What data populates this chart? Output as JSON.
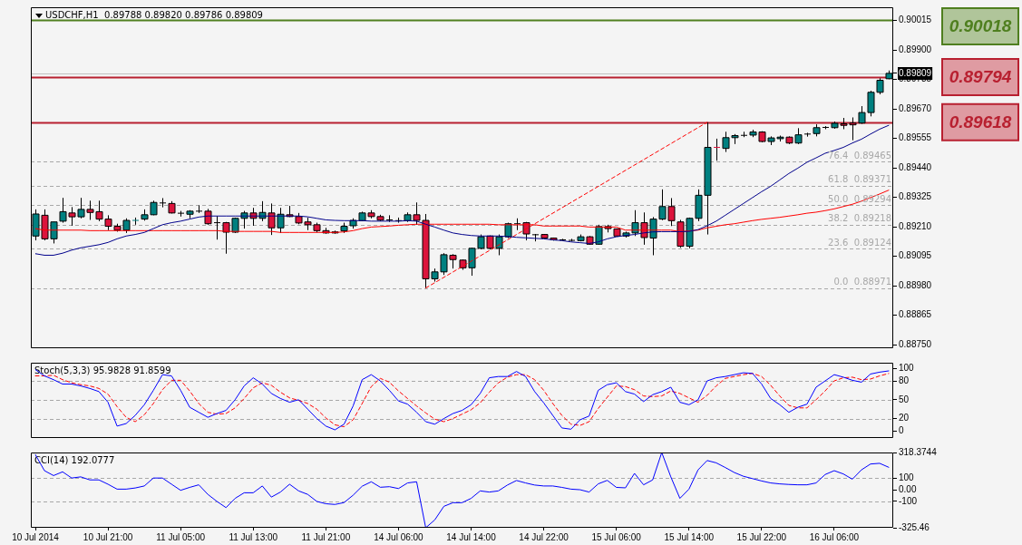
{
  "chart_data": [
    {
      "type": "candlestick",
      "title": "USDCHF,H1  0.89788 0.89820 0.89786 0.89809",
      "categories": [
        null,
        null,
        null,
        null,
        null,
        null,
        null,
        null,
        null,
        null,
        null,
        null,
        null,
        null,
        null,
        null,
        null,
        null,
        null,
        null,
        null,
        null,
        null,
        null,
        null,
        null,
        null,
        null,
        null,
        null,
        null,
        null,
        null,
        null,
        null,
        null,
        null,
        null,
        null,
        null,
        null,
        null,
        null,
        null,
        null,
        null,
        null,
        null,
        null,
        null,
        null,
        null,
        null,
        null,
        null,
        null,
        null,
        null,
        null,
        null,
        null,
        null,
        null,
        null,
        null,
        null,
        null,
        null,
        null,
        null,
        null,
        null,
        null,
        null,
        null,
        null,
        null,
        null,
        null,
        null,
        null,
        null,
        null,
        null,
        null,
        null,
        null,
        null,
        null,
        null,
        null,
        null,
        null,
        null,
        null
      ],
      "ohlc": [
        [
          0.89174,
          0.89278,
          0.89157,
          0.8926
        ],
        [
          0.89255,
          0.89278,
          0.89157,
          0.89163
        ],
        [
          0.89163,
          0.89229,
          0.89145,
          0.89229
        ],
        [
          0.89232,
          0.89323,
          0.89226,
          0.89269
        ],
        [
          0.89264,
          0.89287,
          0.89214,
          0.89249
        ],
        [
          0.89249,
          0.89323,
          0.89243,
          0.89278
        ],
        [
          0.89278,
          0.89312,
          0.89237,
          0.89266
        ],
        [
          0.89269,
          0.89312,
          0.89232,
          0.8924
        ],
        [
          0.8924,
          0.89255,
          0.89197,
          0.89212
        ],
        [
          0.89212,
          0.89222,
          0.89191,
          0.89197
        ],
        [
          0.89197,
          0.89243,
          0.89186,
          0.89235
        ],
        [
          0.89235,
          0.89246,
          0.89218,
          0.89237
        ],
        [
          0.8924,
          0.89278,
          0.89234,
          0.89257
        ],
        [
          0.89257,
          0.89312,
          0.89255,
          0.89305
        ],
        [
          0.89303,
          0.89322,
          0.89286,
          0.89303
        ],
        [
          0.89301,
          0.8931,
          0.89262,
          0.89264
        ],
        [
          0.89263,
          0.89272,
          0.8925,
          0.89263
        ],
        [
          0.89259,
          0.89275,
          0.89243,
          0.89271
        ],
        [
          0.89271,
          0.89294,
          0.89264,
          0.89271
        ],
        [
          0.89271,
          0.8928,
          0.89218,
          0.89222
        ],
        [
          0.89226,
          0.89252,
          0.8916,
          0.89226
        ],
        [
          0.89226,
          0.89229,
          0.89105,
          0.89189
        ],
        [
          0.89189,
          0.89246,
          0.89186,
          0.89243
        ],
        [
          0.89243,
          0.89272,
          0.89203,
          0.89264
        ],
        [
          0.89264,
          0.89284,
          0.89214,
          0.89243
        ],
        [
          0.89243,
          0.8931,
          0.89232,
          0.89266
        ],
        [
          0.89264,
          0.89301,
          0.89178,
          0.89206
        ],
        [
          0.89206,
          0.89284,
          0.89186,
          0.89259
        ],
        [
          0.89257,
          0.89292,
          0.89248,
          0.8925
        ],
        [
          0.8925,
          0.89264,
          0.8922,
          0.89225
        ],
        [
          0.89229,
          0.89246,
          0.89197,
          0.89218
        ],
        [
          0.89218,
          0.89226,
          0.89188,
          0.89195
        ],
        [
          0.89195,
          0.89206,
          0.89183,
          0.89186
        ],
        [
          0.8919,
          0.89195,
          0.89183,
          0.89186
        ],
        [
          0.89194,
          0.89226,
          0.89186,
          0.89212
        ],
        [
          0.89214,
          0.89243,
          0.89203,
          0.89235
        ],
        [
          0.89234,
          0.89269,
          0.89232,
          0.89264
        ],
        [
          0.89264,
          0.89275,
          0.89243,
          0.8925
        ],
        [
          0.8925,
          0.89257,
          0.89232,
          0.89236
        ],
        [
          0.89237,
          0.89255,
          0.89229,
          0.89237
        ],
        [
          0.89234,
          0.89246,
          0.89226,
          0.89234
        ],
        [
          0.89234,
          0.89266,
          0.89229,
          0.89257
        ],
        [
          0.89257,
          0.89305,
          0.89218,
          0.89235
        ],
        [
          0.89235,
          0.8926,
          0.88971,
          0.89007
        ],
        [
          0.89007,
          0.89047,
          0.88996,
          0.89034
        ],
        [
          0.89034,
          0.89107,
          0.89022,
          0.89101
        ],
        [
          0.89099,
          0.89103,
          0.89047,
          0.89082
        ],
        [
          0.8908,
          0.89082,
          0.89042,
          0.8905
        ],
        [
          0.8905,
          0.89128,
          0.89019,
          0.89126
        ],
        [
          0.89126,
          0.8918,
          0.89122,
          0.89171
        ],
        [
          0.89174,
          0.89176,
          0.89122,
          0.89126
        ],
        [
          0.89126,
          0.8918,
          0.89099,
          0.89171
        ],
        [
          0.89171,
          0.89226,
          0.89166,
          0.89222
        ],
        [
          0.89222,
          0.89243,
          0.89197,
          0.89222
        ],
        [
          0.89226,
          0.89229,
          0.89157,
          0.89182
        ],
        [
          0.89179,
          0.89182,
          0.89153,
          0.89179
        ],
        [
          0.8918,
          0.89182,
          0.89163,
          0.89166
        ],
        [
          0.89166,
          0.89168,
          0.89156,
          0.89159
        ],
        [
          0.89159,
          0.89163,
          0.89156,
          0.89159
        ],
        [
          0.89157,
          0.89163,
          0.89153,
          0.89157
        ],
        [
          0.89156,
          0.8918,
          0.89153,
          0.89171
        ],
        [
          0.89171,
          0.89174,
          0.8914,
          0.89142
        ],
        [
          0.89142,
          0.89218,
          0.8914,
          0.89211
        ],
        [
          0.89211,
          0.89218,
          0.89188,
          0.89203
        ],
        [
          0.89202,
          0.89203,
          0.89172,
          0.89174
        ],
        [
          0.89174,
          0.89191,
          0.89168,
          0.89186
        ],
        [
          0.89186,
          0.89275,
          0.89174,
          0.89226
        ],
        [
          0.89226,
          0.89266,
          0.8914,
          0.89168
        ],
        [
          0.89166,
          0.89248,
          0.89099,
          0.8924
        ],
        [
          0.8924,
          0.89356,
          0.89236,
          0.89289
        ],
        [
          0.89289,
          0.89322,
          0.89213,
          0.89234
        ],
        [
          0.89229,
          0.89237,
          0.89128,
          0.89134
        ],
        [
          0.89134,
          0.89246,
          0.89126,
          0.89243
        ],
        [
          0.89243,
          0.89356,
          0.89232,
          0.89333
        ],
        [
          0.89333,
          0.89618,
          0.8918,
          0.8952
        ],
        [
          0.8952,
          0.89554,
          0.89468,
          0.89517
        ],
        [
          0.89516,
          0.89581,
          0.89502,
          0.89558
        ],
        [
          0.89558,
          0.89572,
          0.89533,
          0.89566
        ],
        [
          0.89567,
          0.89581,
          0.8956,
          0.89567
        ],
        [
          0.89568,
          0.89589,
          0.8956,
          0.8958
        ],
        [
          0.8958,
          0.89583,
          0.8954,
          0.89543
        ],
        [
          0.89543,
          0.89563,
          0.89529,
          0.89557
        ],
        [
          0.89554,
          0.89566,
          0.89543,
          0.8956
        ],
        [
          0.8956,
          0.89563,
          0.89533,
          0.89537
        ],
        [
          0.89537,
          0.89595,
          0.89533,
          0.89569
        ],
        [
          0.89572,
          0.89577,
          0.89562,
          0.89572
        ],
        [
          0.89574,
          0.8961,
          0.89563,
          0.89597
        ],
        [
          0.89598,
          0.89603,
          0.89591,
          0.89598
        ],
        [
          0.89597,
          0.89621,
          0.89593,
          0.89614
        ],
        [
          0.89612,
          0.89635,
          0.89591,
          0.89606
        ],
        [
          0.89615,
          0.89637,
          0.89548,
          0.89608
        ],
        [
          0.89615,
          0.89681,
          0.89612,
          0.89656
        ],
        [
          0.89656,
          0.89741,
          0.89641,
          0.89735
        ],
        [
          0.89735,
          0.8979,
          0.89727,
          0.89782
        ],
        [
          0.89788,
          0.8982,
          0.89786,
          0.89809
        ]
      ],
      "colors": [
        "#008080",
        "#dc143c",
        "#008080",
        "#008080",
        "#dc143c",
        "#008080",
        "#dc143c",
        "#dc143c",
        "#dc143c",
        "#dc143c",
        "#008080",
        "#008080",
        "#008080",
        "#008080",
        "#000000",
        "#dc143c",
        "#000000",
        "#008080",
        "#000000",
        "#dc143c",
        "#000000",
        "#dc143c",
        "#008080",
        "#008080",
        "#dc143c",
        "#008080",
        "#dc143c",
        "#008080",
        "#dc143c",
        "#dc143c",
        "#dc143c",
        "#dc143c",
        "#dc143c",
        "#dc143c",
        "#008080",
        "#008080",
        "#008080",
        "#dc143c",
        "#dc143c",
        "#000000",
        "#000000",
        "#008080",
        "#dc143c",
        "#dc143c",
        "#008080",
        "#008080",
        "#dc143c",
        "#dc143c",
        "#008080",
        "#008080",
        "#dc143c",
        "#008080",
        "#008080",
        "#000000",
        "#dc143c",
        "#000000",
        "#dc143c",
        "#dc143c",
        "#000000",
        "#000000",
        "#008080",
        "#dc143c",
        "#008080",
        "#dc143c",
        "#dc143c",
        "#008080",
        "#008080",
        "#dc143c",
        "#008080",
        "#008080",
        "#dc143c",
        "#dc143c",
        "#008080",
        "#008080",
        "#008080",
        "#dc143c",
        "#008080",
        "#008080",
        "#000000",
        "#008080",
        "#dc143c",
        "#008080",
        "#008080",
        "#dc143c",
        "#008080",
        "#000000",
        "#008080",
        "#000000",
        "#008080",
        "#dc143c",
        "#dc143c",
        "#008080",
        "#008080",
        "#008080",
        "#008080"
      ],
      "series": [
        {
          "type": "line",
          "color": "#00008b",
          "values": [
            0.89105,
            0.89099,
            0.89099,
            0.89107,
            0.89119,
            0.89128,
            0.89134,
            0.8914,
            0.89149,
            0.89163,
            0.89174,
            0.8918,
            0.89188,
            0.89203,
            0.89218,
            0.89226,
            0.89232,
            0.8924,
            0.89248,
            0.89252,
            0.89252,
            0.89252,
            0.89252,
            0.89252,
            0.89252,
            0.89252,
            0.89252,
            0.89252,
            0.89252,
            0.89252,
            0.89249,
            0.89243,
            0.89237,
            0.89235,
            0.89234,
            0.89234,
            0.89234,
            0.89232,
            0.89232,
            0.89232,
            0.89232,
            0.89234,
            0.89232,
            0.8922,
            0.89209,
            0.89197,
            0.89186,
            0.8918,
            0.89176,
            0.89174,
            0.89174,
            0.89174,
            0.89172,
            0.89169,
            0.89167,
            0.89165,
            0.89163,
            0.89159,
            0.89156,
            0.89151,
            0.89148,
            0.89145,
            0.89151,
            0.89163,
            0.89171,
            0.89176,
            0.8918,
            0.89186,
            0.8919,
            0.89191,
            0.89191,
            0.89191,
            0.89192,
            0.89199,
            0.89214,
            0.89232,
            0.89255,
            0.89278,
            0.89301,
            0.89324,
            0.89347,
            0.89368,
            0.89393,
            0.89418,
            0.89439,
            0.89462,
            0.89479,
            0.89497,
            0.89508,
            0.8952,
            0.89537,
            0.89552,
            0.89572,
            0.89591,
            0.89606
          ]
        },
        {
          "type": "line",
          "color": "#ff0000",
          "values": [
            0.89203,
            0.89197,
            0.89197,
            0.89197,
            0.89197,
            0.89197,
            0.89195,
            0.89195,
            0.89195,
            0.89195,
            0.89195,
            0.89195,
            0.89195,
            0.89195,
            0.89195,
            0.89195,
            0.89195,
            0.89195,
            0.89195,
            0.89195,
            0.89195,
            0.89192,
            0.89192,
            0.89192,
            0.89192,
            0.89192,
            0.89192,
            0.89188,
            0.89188,
            0.89188,
            0.89188,
            0.89188,
            0.89188,
            0.89188,
            0.8919,
            0.89195,
            0.89203,
            0.89209,
            0.89211,
            0.89213,
            0.89216,
            0.89218,
            0.8922,
            0.8922,
            0.8922,
            0.8922,
            0.8922,
            0.8922,
            0.8922,
            0.8922,
            0.8922,
            0.89218,
            0.89218,
            0.89218,
            0.89218,
            0.89218,
            0.89213,
            0.89213,
            0.89213,
            0.89213,
            0.89213,
            0.89209,
            0.89209,
            0.89209,
            0.89209,
            0.89197,
            0.89197,
            0.89197,
            0.89197,
            0.89197,
            0.89197,
            0.89191,
            0.89194,
            0.89197,
            0.89206,
            0.89212,
            0.89218,
            0.89222,
            0.89228,
            0.89234,
            0.89239,
            0.89243,
            0.89247,
            0.89252,
            0.89257,
            0.89263,
            0.89267,
            0.89273,
            0.8928,
            0.89289,
            0.89298,
            0.8931,
            0.89324,
            0.89338,
            0.89353
          ]
        },
        {
          "type": "line",
          "color": "#ff0000",
          "line_style": "dashed",
          "values": [
            null,
            null,
            null,
            null,
            null,
            null,
            null,
            null,
            null,
            null,
            null,
            null,
            null,
            null,
            null,
            null,
            null,
            null,
            null,
            null,
            null,
            null,
            null,
            null,
            null,
            null,
            null,
            null,
            null,
            null,
            null,
            null,
            null,
            null,
            null,
            null,
            null,
            null,
            null,
            null,
            null,
            null,
            null,
            0.88971,
            null,
            null,
            null,
            null,
            null,
            null,
            null,
            null,
            null,
            null,
            null,
            null,
            null,
            null,
            null,
            null,
            null,
            null,
            null,
            null,
            null,
            null,
            null,
            null,
            null,
            null,
            null,
            null,
            null,
            null,
            0.89618,
            null,
            null,
            null,
            null,
            null,
            null,
            null,
            null,
            null,
            null,
            null,
            null,
            null,
            null,
            null,
            null,
            null,
            null,
            null,
            null
          ]
        }
      ],
      "ylim": [
        0.88736,
        0.90067
      ],
      "yticks": [
        0.90015,
        {
          "value": 0.899,
          "label": "0.89900"
        },
        0.89785,
        {
          "value": 0.89809,
          "label": "0.89809"
        },
        {
          "value": 0.8967,
          "label": "0.89670"
        },
        0.89555,
        {
          "value": 0.8944,
          "label": "0.89440"
        },
        0.89325,
        {
          "value": 0.8921,
          "label": "0.89210"
        },
        0.89095,
        {
          "value": 0.8898,
          "label": "0.88980"
        },
        0.88865,
        {
          "value": 0.8875,
          "label": "0.88750"
        }
      ],
      "ref_lines": [
        {
          "axis": "y",
          "value": 0.89809,
          "color": "#c0c0c0",
          "line_style": "solid"
        },
        {
          "axis": "y",
          "value": 0.90018,
          "label": "0.90018",
          "color": "#4f7f1f",
          "line_style": "solid"
        },
        {
          "axis": "y",
          "value": 0.89794,
          "label": "0.89794",
          "color": "#b82030",
          "line_style": "solid"
        },
        {
          "axis": "y",
          "value": 0.89618,
          "label": "0.89618",
          "color": "#b82030",
          "line_style": "solid"
        },
        {
          "axis": "y",
          "value": 0.89465,
          "label": "76.4  0.89465",
          "color": "#a8a8a8",
          "line_style": "dashed"
        },
        {
          "axis": "y",
          "value": 0.89371,
          "label": "61.8  0.89371",
          "color": "#a8a8a8",
          "line_style": "dashed"
        },
        {
          "axis": "y",
          "value": 0.89294,
          "label": "50.0  0.89294",
          "color": "#a8a8a8",
          "line_style": "dashed"
        },
        {
          "axis": "y",
          "value": 0.89218,
          "label": "38.2  0.89218",
          "color": "#a8a8a8",
          "line_style": "dashed"
        },
        {
          "axis": "y",
          "value": 0.89124,
          "label": "23.6  0.89124",
          "color": "#a8a8a8",
          "line_style": "dashed"
        },
        {
          "axis": "y",
          "value": 0.88971,
          "label": "0.0  0.88971",
          "color": "#a8a8a8",
          "line_style": "dashed"
        }
      ],
      "tick_labels": "y"
    },
    {
      "type": "line",
      "title": "Stoch(5,3,3) 95.9828 91.8599",
      "categories": [
        null,
        null,
        null,
        null,
        null,
        null,
        null,
        null,
        null,
        null,
        null,
        null,
        null,
        null,
        null,
        null,
        null,
        null,
        null,
        null,
        null,
        null,
        null,
        null,
        null,
        null,
        null,
        null,
        null,
        null,
        null,
        null,
        null,
        null,
        null,
        null,
        null,
        null,
        null,
        null,
        null,
        null,
        null,
        null,
        null,
        null,
        null,
        null,
        null,
        null,
        null,
        null,
        null,
        null,
        null,
        null,
        null,
        null,
        null,
        null,
        null,
        null,
        null,
        null,
        null,
        null,
        null,
        null,
        null,
        null,
        null,
        null,
        null,
        null,
        null,
        null,
        null,
        null,
        null,
        null,
        null,
        null,
        null,
        null,
        null,
        null,
        null,
        null,
        null,
        null,
        null,
        null,
        null,
        null,
        null
      ],
      "series": [
        {
          "color": "#0000ff",
          "values": [
            98,
            88,
            82,
            75,
            75,
            72,
            68,
            63,
            46,
            8,
            12,
            25,
            42,
            65,
            90,
            88,
            65,
            38,
            30,
            22,
            28,
            33,
            50,
            72,
            85,
            75,
            60,
            52,
            46,
            50,
            35,
            20,
            8,
            2,
            11,
            40,
            82,
            90,
            80,
            65,
            48,
            43,
            30,
            15,
            11,
            20,
            28,
            33,
            42,
            60,
            85,
            87,
            87,
            95,
            87,
            63,
            45,
            25,
            5,
            3,
            18,
            24,
            65,
            74,
            77,
            63,
            59,
            47,
            58,
            63,
            70,
            46,
            42,
            50,
            80,
            85,
            87,
            90,
            93,
            92,
            75,
            52,
            42,
            30,
            38,
            43,
            70,
            80,
            90,
            86,
            81,
            78,
            91,
            94,
            95.9828
          ]
        },
        {
          "color": "#ff0000",
          "line_style": "dashed",
          "values": [
            88,
            88,
            89,
            82,
            77,
            74,
            72,
            68,
            59,
            39,
            22,
            15,
            26,
            44,
            66,
            81,
            81,
            64,
            44,
            30,
            27,
            28,
            37,
            52,
            69,
            77,
            73,
            62,
            53,
            49,
            44,
            35,
            21,
            10,
            7,
            18,
            44,
            71,
            84,
            78,
            64,
            52,
            40,
            29,
            19,
            15,
            20,
            27,
            34,
            45,
            62,
            77,
            86,
            90,
            90,
            82,
            65,
            44,
            25,
            11,
            9,
            15,
            36,
            54,
            72,
            71,
            66,
            56,
            55,
            56,
            64,
            60,
            53,
            46,
            57,
            72,
            84,
            87,
            90,
            92,
            87,
            73,
            56,
            41,
            37,
            37,
            50,
            64,
            80,
            85,
            86,
            82,
            83,
            88,
            91.8599
          ]
        }
      ],
      "ylim": [
        -11,
        109
      ],
      "yticks": [
        100,
        80,
        50,
        20,
        0
      ],
      "ref_lines": [
        {
          "axis": "y",
          "value": 80,
          "color": "#a8a8a8",
          "line_style": "dashed"
        },
        {
          "axis": "y",
          "value": 50,
          "color": "#a8a8a8",
          "line_style": "dashed"
        },
        {
          "axis": "y",
          "value": 20,
          "color": "#a8a8a8",
          "line_style": "dashed"
        }
      ],
      "tick_labels": "y"
    },
    {
      "type": "line",
      "title": "CCI(14) 192.0777",
      "categories": [
        "10 Jul 2014",
        null,
        null,
        null,
        null,
        null,
        null,
        null,
        "10 Jul 21:00",
        null,
        null,
        null,
        null,
        null,
        null,
        null,
        "11 Jul 05:00",
        null,
        null,
        null,
        null,
        null,
        null,
        null,
        "11 Jul 13:00",
        null,
        null,
        null,
        null,
        null,
        null,
        null,
        "11 Jul 21:00",
        null,
        null,
        null,
        null,
        null,
        null,
        null,
        "14 Jul 06:00",
        null,
        null,
        null,
        null,
        null,
        null,
        null,
        "14 Jul 14:00",
        null,
        null,
        null,
        null,
        null,
        null,
        null,
        "14 Jul 22:00",
        null,
        null,
        null,
        null,
        null,
        null,
        null,
        "15 Jul 06:00",
        null,
        null,
        null,
        null,
        null,
        null,
        null,
        "15 Jul 14:00",
        null,
        null,
        null,
        null,
        null,
        null,
        null,
        "15 Jul 22:00",
        null,
        null,
        null,
        null,
        null,
        null,
        null,
        "16 Jul 06:00",
        null,
        null,
        null,
        null,
        null,
        null
      ],
      "series": [
        {
          "color": "#0000ff",
          "values": [
            300,
            163,
            121,
            153,
            100,
            110,
            84,
            84,
            47,
            5,
            5,
            15,
            32,
            100,
            100,
            47,
            -5,
            20,
            42,
            -40,
            -100,
            -153,
            -74,
            -26,
            -26,
            32,
            -63,
            -20,
            47,
            -10,
            -40,
            -100,
            -120,
            -126,
            -110,
            -47,
            30,
            68,
            21,
            26,
            10,
            58,
            68,
            -325.46,
            -258,
            -142,
            -111,
            -111,
            -74,
            -10,
            -20,
            -10,
            40,
            79,
            58,
            40,
            32,
            32,
            20,
            5,
            0,
            -20,
            50,
            80,
            20,
            16,
            140,
            42,
            84,
            318.3744,
            110,
            -74,
            5,
            170,
            250,
            230,
            190,
            147,
            115,
            95,
            75,
            58,
            50,
            45,
            42,
            42,
            58,
            130,
            163,
            135,
            90,
            170,
            220,
            226,
            192.0777
          ]
        }
      ],
      "ylim": [
        -325.46,
        318.3744
      ],
      "yticks": [
        318.3744,
        100,
        {
          "value": 0,
          "label": "0.00"
        },
        -100,
        -325.46
      ],
      "ref_lines": [
        {
          "axis": "y",
          "value": 100,
          "color": "#a8a8a8",
          "line_style": "dashed"
        },
        {
          "axis": "y",
          "value": -100,
          "color": "#a8a8a8",
          "line_style": "dashed"
        }
      ]
    }
  ]
}
